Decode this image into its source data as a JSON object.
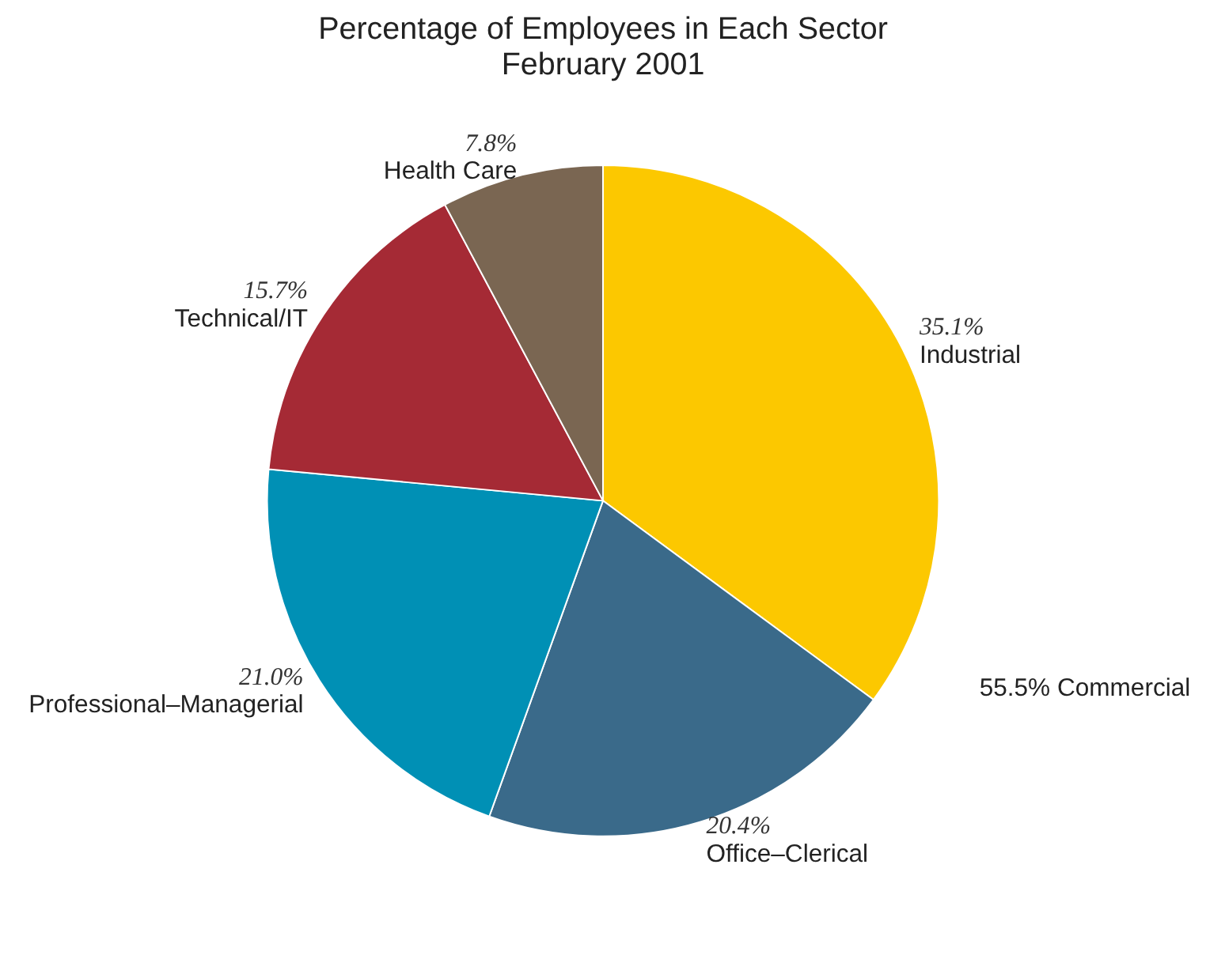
{
  "chart_data": {
    "type": "pie",
    "title": "Percentage of Employees in Each Sector",
    "subtitle": "February 2001",
    "categories": [
      "Industrial",
      "Office–Clerical",
      "Professional–Managerial",
      "Technical/IT",
      "Health Care"
    ],
    "values": [
      35.1,
      20.4,
      21.0,
      15.7,
      7.8
    ],
    "value_labels": [
      "35.1%",
      "20.4%",
      "21.0%",
      "15.7%",
      "7.8%"
    ],
    "colors": [
      "#fcc800",
      "#3a6a8a",
      "#0090b5",
      "#a52a35",
      "#7a6652"
    ],
    "annotations": [
      "55.5% Commercial"
    ],
    "legend": false
  }
}
